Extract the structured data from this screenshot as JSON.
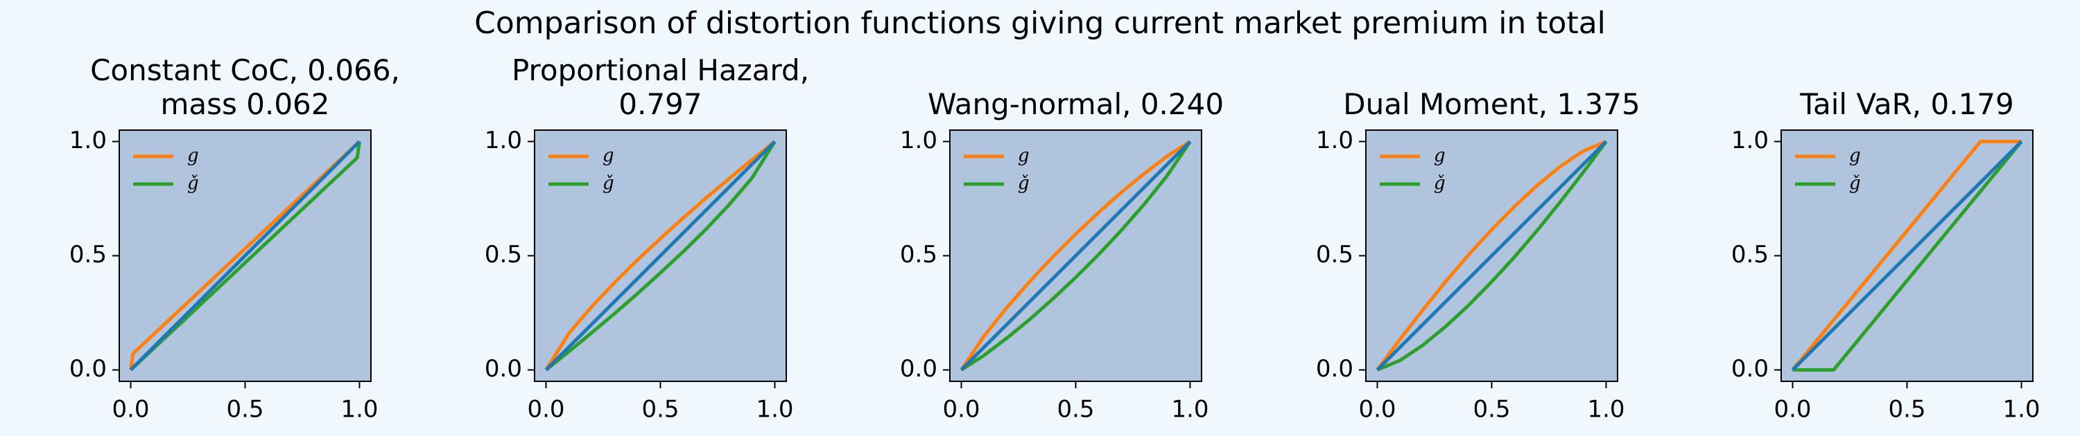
{
  "title": "Comparison of distortion functions giving current market premium in total",
  "chart_data": [
    {
      "type": "line",
      "title": "Constant CoC, 0.066,\nmass 0.062",
      "x": [
        0,
        0.01,
        0.5,
        0.99,
        1
      ],
      "series": [
        {
          "name": "g",
          "color": "#ff7f0e",
          "values": [
            0,
            0.071,
            0.531,
            0.991,
            1
          ]
        },
        {
          "name": "ǧ",
          "color": "#2ca02c",
          "values": [
            0,
            0.009,
            0.469,
            0.929,
            1
          ]
        },
        {
          "color": "#1f77b4",
          "values": [
            0,
            0.01,
            0.5,
            0.99,
            1
          ]
        }
      ],
      "xlim": [
        -0.05,
        1.05
      ],
      "ylim": [
        -0.05,
        1.05
      ],
      "xticks": [
        {
          "value": 0,
          "label": "0.0"
        },
        {
          "value": 0.5,
          "label": "0.5"
        },
        {
          "value": 1,
          "label": "1.0"
        }
      ],
      "yticks": [
        {
          "value": 0,
          "label": "0.0"
        },
        {
          "value": 0.5,
          "label": "0.5"
        },
        {
          "value": 1,
          "label": "1.0"
        }
      ],
      "legend": "upper left"
    },
    {
      "type": "line",
      "title": "Proportional Hazard,\n0.797",
      "x": [
        0,
        0.1,
        0.2,
        0.3,
        0.4,
        0.5,
        0.6,
        0.7,
        0.8,
        0.9,
        1
      ],
      "series": [
        {
          "name": "g",
          "color": "#ff7f0e",
          "values": [
            0,
            0.16,
            0.277,
            0.383,
            0.482,
            0.575,
            0.666,
            0.753,
            0.837,
            0.92,
            1
          ]
        },
        {
          "name": "ǧ",
          "color": "#2ca02c",
          "values": [
            0,
            0.08,
            0.163,
            0.247,
            0.334,
            0.425,
            0.518,
            0.617,
            0.723,
            0.84,
            1
          ]
        },
        {
          "color": "#1f77b4",
          "values": [
            0,
            0.1,
            0.2,
            0.3,
            0.4,
            0.5,
            0.6,
            0.7,
            0.8,
            0.9,
            1
          ]
        }
      ],
      "xlim": [
        -0.05,
        1.05
      ],
      "ylim": [
        -0.05,
        1.05
      ],
      "xticks": [
        {
          "value": 0,
          "label": "0.0"
        },
        {
          "value": 0.5,
          "label": "0.5"
        },
        {
          "value": 1,
          "label": "1.0"
        }
      ],
      "yticks": [
        {
          "value": 0,
          "label": "0.0"
        },
        {
          "value": 0.5,
          "label": "0.5"
        },
        {
          "value": 1,
          "label": "1.0"
        }
      ],
      "legend": "upper left"
    },
    {
      "type": "line",
      "title": "Wang-normal, 0.240",
      "x": [
        0,
        0.1,
        0.2,
        0.3,
        0.4,
        0.5,
        0.6,
        0.7,
        0.8,
        0.9,
        1
      ],
      "series": [
        {
          "name": "g",
          "color": "#ff7f0e",
          "values": [
            0,
            0.149,
            0.274,
            0.388,
            0.495,
            0.595,
            0.689,
            0.778,
            0.86,
            0.936,
            1
          ]
        },
        {
          "name": "ǧ",
          "color": "#2ca02c",
          "values": [
            0,
            0.064,
            0.14,
            0.222,
            0.311,
            0.405,
            0.505,
            0.612,
            0.726,
            0.851,
            1
          ]
        },
        {
          "color": "#1f77b4",
          "values": [
            0,
            0.1,
            0.2,
            0.3,
            0.4,
            0.5,
            0.6,
            0.7,
            0.8,
            0.9,
            1
          ]
        }
      ],
      "xlim": [
        -0.05,
        1.05
      ],
      "ylim": [
        -0.05,
        1.05
      ],
      "xticks": [
        {
          "value": 0,
          "label": "0.0"
        },
        {
          "value": 0.5,
          "label": "0.5"
        },
        {
          "value": 1,
          "label": "1.0"
        }
      ],
      "yticks": [
        {
          "value": 0,
          "label": "0.0"
        },
        {
          "value": 0.5,
          "label": "0.5"
        },
        {
          "value": 1,
          "label": "1.0"
        }
      ],
      "legend": "upper left"
    },
    {
      "type": "line",
      "title": "Dual Moment, 1.375",
      "x": [
        0,
        0.1,
        0.2,
        0.3,
        0.4,
        0.5,
        0.6,
        0.7,
        0.8,
        0.9,
        1
      ],
      "series": [
        {
          "name": "g",
          "color": "#ff7f0e",
          "values": [
            0,
            0.135,
            0.264,
            0.388,
            0.505,
            0.614,
            0.716,
            0.809,
            0.891,
            0.958,
            1
          ]
        },
        {
          "name": "ǧ",
          "color": "#2ca02c",
          "values": [
            0,
            0.042,
            0.109,
            0.191,
            0.284,
            0.386,
            0.495,
            0.612,
            0.736,
            0.865,
            1
          ]
        },
        {
          "color": "#1f77b4",
          "values": [
            0,
            0.1,
            0.2,
            0.3,
            0.4,
            0.5,
            0.6,
            0.7,
            0.8,
            0.9,
            1
          ]
        }
      ],
      "xlim": [
        -0.05,
        1.05
      ],
      "ylim": [
        -0.05,
        1.05
      ],
      "xticks": [
        {
          "value": 0,
          "label": "0.0"
        },
        {
          "value": 0.5,
          "label": "0.5"
        },
        {
          "value": 1,
          "label": "1.0"
        }
      ],
      "yticks": [
        {
          "value": 0,
          "label": "0.0"
        },
        {
          "value": 0.5,
          "label": "0.5"
        },
        {
          "value": 1,
          "label": "1.0"
        }
      ],
      "legend": "upper left"
    },
    {
      "type": "line",
      "title": "Tail VaR, 0.179",
      "x": [
        0,
        0.179,
        0.821,
        1
      ],
      "series": [
        {
          "name": "g",
          "color": "#ff7f0e",
          "values": [
            0,
            0.218,
            1,
            1
          ]
        },
        {
          "name": "ǧ",
          "color": "#2ca02c",
          "values": [
            0,
            0,
            0.782,
            1
          ]
        },
        {
          "color": "#1f77b4",
          "values": [
            0,
            0.179,
            0.821,
            1
          ]
        }
      ],
      "xlim": [
        -0.05,
        1.05
      ],
      "ylim": [
        -0.05,
        1.05
      ],
      "xticks": [
        {
          "value": 0,
          "label": "0.0"
        },
        {
          "value": 0.5,
          "label": "0.5"
        },
        {
          "value": 1,
          "label": "1.0"
        }
      ],
      "yticks": [
        {
          "value": 0,
          "label": "0.0"
        },
        {
          "value": 0.5,
          "label": "0.5"
        },
        {
          "value": 1,
          "label": "1.0"
        }
      ],
      "legend": "upper left"
    }
  ]
}
